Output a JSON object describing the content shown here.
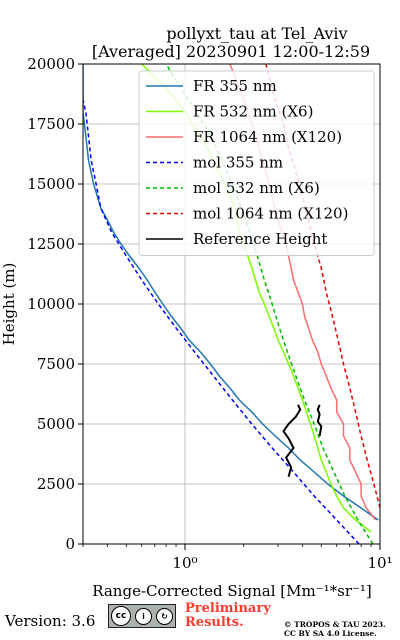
{
  "chart_data": {
    "type": "line",
    "title": "pollyxt_tau at Tel_Aviv",
    "subtitle": "[Averaged] 20230901 12:00-12:59",
    "xlabel": "Range-Corrected Signal [Mm⁻¹*sr⁻¹]",
    "ylabel": "Height (m)",
    "xscale": "log",
    "xlim": [
      0.3,
      10
    ],
    "ylim": [
      0,
      20000
    ],
    "x_ticks": [
      1,
      10
    ],
    "x_tick_labels": [
      "10⁰",
      "10¹"
    ],
    "y_ticks": [
      0,
      2500,
      5000,
      7500,
      10000,
      12500,
      15000,
      17500,
      20000
    ],
    "y_tick_labels": [
      "0",
      "2500",
      "5000",
      "7500",
      "10000",
      "12500",
      "15000",
      "17500",
      "20000"
    ],
    "grid": true,
    "legend_position": "top-right",
    "series": [
      {
        "name": "FR 355 nm",
        "color": "#1f77b4",
        "style": "solid",
        "points": [
          [
            9.8,
            1000
          ],
          [
            8.0,
            1500
          ],
          [
            6.5,
            2000
          ],
          [
            5.4,
            2500
          ],
          [
            4.6,
            3000
          ],
          [
            3.9,
            3500
          ],
          [
            3.4,
            4000
          ],
          [
            2.9,
            4500
          ],
          [
            2.5,
            5000
          ],
          [
            2.2,
            5500
          ],
          [
            1.9,
            6000
          ],
          [
            1.7,
            6500
          ],
          [
            1.5,
            7000
          ],
          [
            1.35,
            7500
          ],
          [
            1.2,
            8000
          ],
          [
            1.05,
            8500
          ],
          [
            0.95,
            9000
          ],
          [
            0.85,
            9500
          ],
          [
            0.77,
            10000
          ],
          [
            0.7,
            10500
          ],
          [
            0.64,
            11000
          ],
          [
            0.58,
            11500
          ],
          [
            0.52,
            12000
          ],
          [
            0.47,
            12500
          ],
          [
            0.43,
            13000
          ],
          [
            0.4,
            13500
          ],
          [
            0.37,
            14000
          ],
          [
            0.34,
            15000
          ],
          [
            0.32,
            16000
          ],
          [
            0.31,
            17000
          ],
          [
            0.3,
            18000
          ],
          [
            0.3,
            19000
          ],
          [
            0.3,
            20000
          ]
        ]
      },
      {
        "name": "FR 532 nm (X6)",
        "color": "#7cfc00",
        "style": "solid",
        "points": [
          [
            9.0,
            500
          ],
          [
            7.5,
            1000
          ],
          [
            6.5,
            1500
          ],
          [
            6.0,
            2000
          ],
          [
            5.6,
            2500
          ],
          [
            5.3,
            3000
          ],
          [
            5.0,
            3500
          ],
          [
            4.8,
            4000
          ],
          [
            4.6,
            4500
          ],
          [
            4.4,
            5000
          ],
          [
            4.2,
            5500
          ],
          [
            4.0,
            6000
          ],
          [
            3.8,
            6500
          ],
          [
            3.6,
            7000
          ],
          [
            3.4,
            7500
          ],
          [
            3.2,
            8000
          ],
          [
            3.0,
            8500
          ],
          [
            2.85,
            9000
          ],
          [
            2.7,
            9500
          ],
          [
            2.55,
            10000
          ],
          [
            2.4,
            10500
          ],
          [
            2.3,
            11000
          ],
          [
            2.2,
            11500
          ],
          [
            2.1,
            12000
          ],
          [
            2.0,
            12500
          ],
          [
            1.9,
            13000
          ],
          [
            1.8,
            14000
          ],
          [
            1.6,
            15000
          ],
          [
            1.4,
            16000
          ],
          [
            1.2,
            17000
          ],
          [
            1.0,
            18000
          ],
          [
            0.8,
            19000
          ],
          [
            0.6,
            20000
          ]
        ]
      },
      {
        "name": "FR 1064 nm (X120)",
        "color": "#ff6b6b",
        "style": "solid",
        "points": [
          [
            9.5,
            1000
          ],
          [
            8.5,
            1500
          ],
          [
            8.0,
            2000
          ],
          [
            8.0,
            2500
          ],
          [
            7.5,
            3000
          ],
          [
            7.0,
            3500
          ],
          [
            7.0,
            4000
          ],
          [
            6.5,
            4500
          ],
          [
            6.5,
            5000
          ],
          [
            6.0,
            5500
          ],
          [
            6.0,
            6000
          ],
          [
            5.6,
            6500
          ],
          [
            5.3,
            7000
          ],
          [
            5.0,
            7500
          ],
          [
            4.8,
            8000
          ],
          [
            4.5,
            8500
          ],
          [
            4.3,
            9000
          ],
          [
            4.1,
            9500
          ],
          [
            4.0,
            10000
          ],
          [
            3.8,
            10500
          ],
          [
            3.6,
            11000
          ],
          [
            3.5,
            11500
          ],
          [
            3.4,
            12000
          ],
          [
            3.3,
            12500
          ],
          [
            3.0,
            13500
          ],
          [
            2.8,
            14500
          ],
          [
            2.6,
            15500
          ],
          [
            2.4,
            16500
          ],
          [
            2.2,
            17500
          ],
          [
            2.0,
            18500
          ],
          [
            1.8,
            19500
          ],
          [
            1.7,
            20000
          ]
        ]
      },
      {
        "name": "mol 355 nm",
        "color": "#0000ff",
        "style": "dashed",
        "points": [
          [
            7.8,
            0
          ],
          [
            6.0,
            1000
          ],
          [
            4.6,
            2000
          ],
          [
            3.6,
            3000
          ],
          [
            2.8,
            4000
          ],
          [
            2.2,
            5000
          ],
          [
            1.75,
            6000
          ],
          [
            1.4,
            7000
          ],
          [
            1.12,
            8000
          ],
          [
            0.9,
            9000
          ],
          [
            0.73,
            10000
          ],
          [
            0.6,
            11000
          ],
          [
            0.5,
            12000
          ],
          [
            0.42,
            13000
          ],
          [
            0.37,
            14000
          ],
          [
            0.35,
            15000
          ],
          [
            0.33,
            16000
          ],
          [
            0.32,
            17000
          ],
          [
            0.31,
            18000
          ],
          [
            0.3,
            18500
          ]
        ]
      },
      {
        "name": "mol 532 nm (X6)",
        "color": "#00bb00",
        "style": "dashed",
        "points": [
          [
            9.2,
            0
          ],
          [
            7.7,
            1000
          ],
          [
            6.6,
            2000
          ],
          [
            5.8,
            3000
          ],
          [
            5.1,
            4000
          ],
          [
            4.6,
            5000
          ],
          [
            4.1,
            6000
          ],
          [
            3.7,
            7000
          ],
          [
            3.35,
            8000
          ],
          [
            3.05,
            9000
          ],
          [
            2.8,
            10000
          ],
          [
            2.55,
            11000
          ],
          [
            2.35,
            12000
          ],
          [
            2.15,
            13000
          ],
          [
            1.95,
            14000
          ],
          [
            1.75,
            15000
          ],
          [
            1.55,
            16000
          ],
          [
            1.35,
            17000
          ],
          [
            1.15,
            18000
          ],
          [
            0.95,
            19000
          ],
          [
            0.8,
            20000
          ]
        ]
      },
      {
        "name": "mol 1064 nm (X120)",
        "color": "#ee0000",
        "style": "dashed",
        "points": [
          [
            10.0,
            1500
          ],
          [
            9.3,
            2500
          ],
          [
            8.6,
            3500
          ],
          [
            8.0,
            4500
          ],
          [
            7.5,
            5500
          ],
          [
            7.0,
            6500
          ],
          [
            6.5,
            7500
          ],
          [
            6.1,
            8500
          ],
          [
            5.7,
            9500
          ],
          [
            5.3,
            10500
          ],
          [
            5.0,
            11500
          ],
          [
            4.6,
            12500
          ],
          [
            4.3,
            13500
          ],
          [
            4.0,
            14500
          ],
          [
            3.7,
            15500
          ],
          [
            3.4,
            16500
          ],
          [
            3.2,
            17500
          ],
          [
            2.9,
            18500
          ],
          [
            2.7,
            19500
          ],
          [
            2.6,
            20000
          ]
        ]
      },
      {
        "name": "Reference Height",
        "color": "#000000",
        "style": "solid",
        "points": [
          [
            3.4,
            2800
          ],
          [
            3.5,
            3200
          ],
          [
            3.3,
            3600
          ],
          [
            3.6,
            4000
          ],
          [
            3.4,
            4400
          ],
          [
            3.2,
            4700
          ],
          [
            3.4,
            5000
          ],
          [
            3.7,
            5300
          ],
          [
            3.9,
            5600
          ],
          [
            3.8,
            5800
          ]
        ]
      },
      {
        "name": "Reference Height",
        "color": "#000000",
        "style": "solid",
        "points": [
          [
            4.9,
            4500
          ],
          [
            5.0,
            4900
          ],
          [
            4.8,
            5100
          ],
          [
            4.9,
            5400
          ],
          [
            4.8,
            5600
          ],
          [
            4.9,
            5800
          ]
        ]
      }
    ]
  },
  "footer": {
    "version": "Version: 3.6",
    "license_badge": "BY  SA",
    "preliminary_line1": "Preliminary",
    "preliminary_line2": "Results.",
    "copyright_line1": "© TROPOS & TAU 2023.",
    "copyright_line2": "CC BY SA 4.0 License."
  }
}
